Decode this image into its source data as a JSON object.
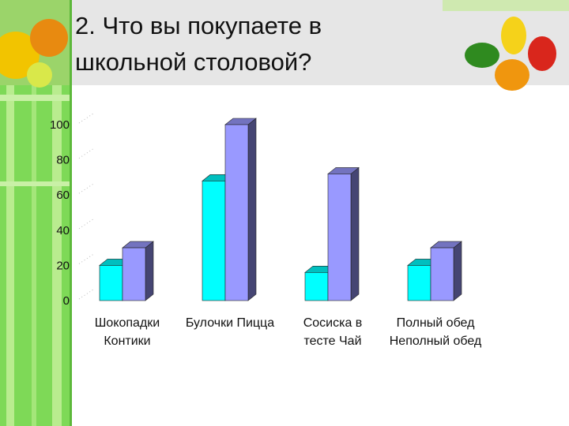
{
  "chart_data": {
    "type": "bar3d",
    "title": "2. Что вы покупаете в школьной столовой?",
    "categories": [
      "Шокопадки Контики",
      "Булочки Пицца",
      "Сосиска в тесте Чай",
      "Полный обед Неполный обед"
    ],
    "series": [
      {
        "color": "#00ffff",
        "values": [
          20,
          68,
          16,
          20
        ]
      },
      {
        "color": "#9999ff",
        "values": [
          30,
          100,
          72,
          30
        ]
      }
    ],
    "ylim": [
      0,
      100
    ],
    "yticks": [
      0,
      20,
      40,
      60,
      80,
      100
    ]
  }
}
